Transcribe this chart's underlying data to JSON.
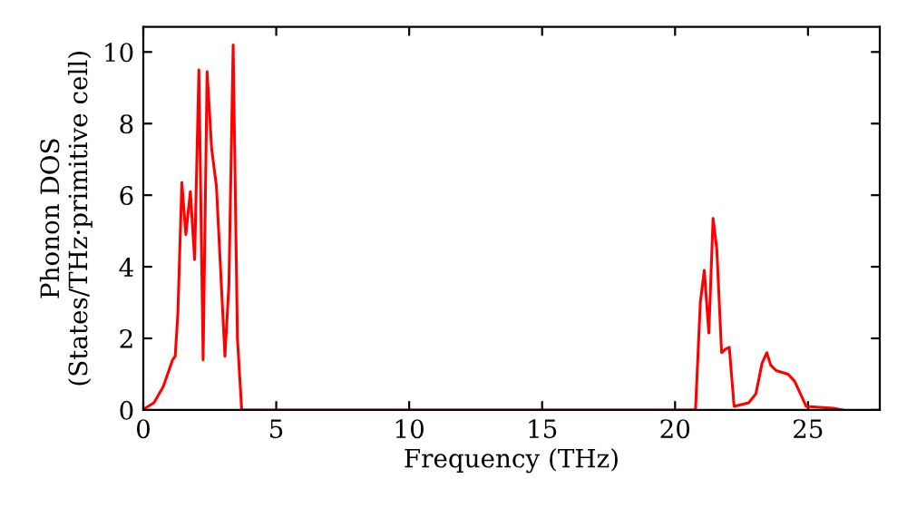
{
  "chart_data": {
    "type": "line",
    "xlabel": "Frequency (THz)",
    "ylabel": "Phonon DOS\n(States/THz·primitive cell)",
    "xlim": [
      0,
      27.7
    ],
    "ylim": [
      0,
      10.7
    ],
    "xticks": [
      0,
      5,
      10,
      15,
      20,
      25
    ],
    "yticks": [
      0,
      2,
      4,
      6,
      8,
      10
    ],
    "grid": false,
    "marker": "none",
    "line_style": "solid",
    "series": [
      {
        "color": "#ff0000",
        "x": [
          0.07,
          0.4,
          0.75,
          1.1,
          1.2,
          1.3,
          1.45,
          1.6,
          1.77,
          1.93,
          2.09,
          2.25,
          2.4,
          2.57,
          2.75,
          3.07,
          3.22,
          3.38,
          3.54,
          3.7,
          10,
          20.77,
          20.95,
          21.1,
          21.27,
          21.43,
          21.57,
          21.75,
          21.9,
          22.04,
          22.22,
          22.77,
          23.04,
          23.27,
          23.45,
          23.6,
          23.8,
          24.25,
          24.5,
          24.93,
          25.95,
          26.3
        ],
        "values": [
          0.05,
          0.2,
          0.65,
          1.4,
          1.5,
          2.7,
          6.35,
          4.9,
          6.1,
          4.2,
          9.5,
          1.4,
          9.45,
          7.3,
          6.25,
          1.5,
          3.5,
          10.2,
          2.0,
          0,
          0,
          0,
          3.0,
          3.9,
          2.15,
          5.35,
          4.5,
          1.6,
          1.7,
          1.75,
          0.1,
          0.2,
          0.45,
          1.3,
          1.6,
          1.25,
          1.1,
          1.0,
          0.8,
          0.1,
          0.05,
          0
        ]
      }
    ]
  }
}
